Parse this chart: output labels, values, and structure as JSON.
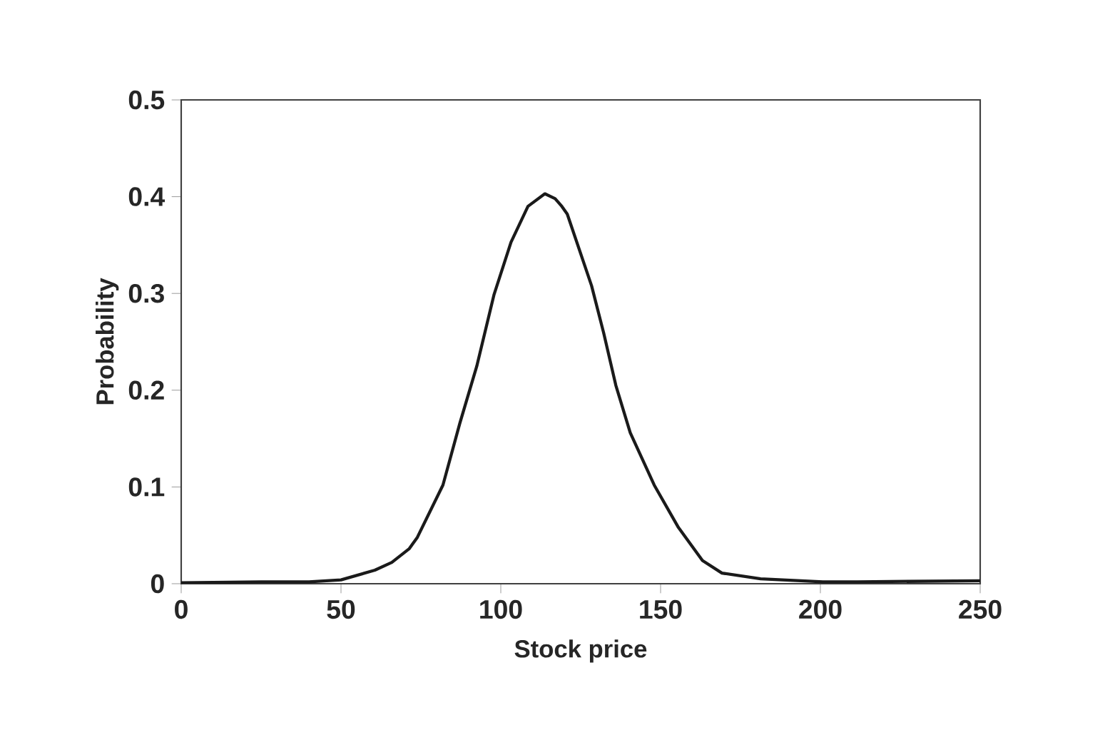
{
  "chart_data": {
    "type": "line",
    "xlabel": "Stock price",
    "ylabel": "Probability",
    "x": [
      0,
      25,
      40,
      50,
      60.6,
      65.9,
      71.3,
      73.9,
      81.9,
      87.2,
      92.5,
      97.9,
      103.2,
      108.5,
      113.8,
      117,
      119.1,
      120.8,
      128.4,
      132.2,
      136,
      140.5,
      148,
      155.6,
      163.1,
      169.2,
      181.3,
      200.8,
      211.5,
      250
    ],
    "values": [
      0.001,
      0.002,
      0.002,
      0.004,
      0.014,
      0.022,
      0.036,
      0.048,
      0.102,
      0.166,
      0.225,
      0.299,
      0.353,
      0.39,
      0.403,
      0.398,
      0.39,
      0.382,
      0.308,
      0.259,
      0.205,
      0.156,
      0.102,
      0.058,
      0.024,
      0.011,
      0.005,
      0.002,
      0.002,
      0.003
    ],
    "color": "#1a1a1a",
    "xlim": [
      0,
      250
    ],
    "ylim": [
      0,
      0.5
    ],
    "xticks": [
      0,
      50,
      100,
      150,
      200,
      250
    ],
    "yticks": [
      0,
      0.1,
      0.2,
      0.3,
      0.4,
      0.5
    ],
    "grid": false,
    "marker": "none",
    "line_style": "solid"
  }
}
